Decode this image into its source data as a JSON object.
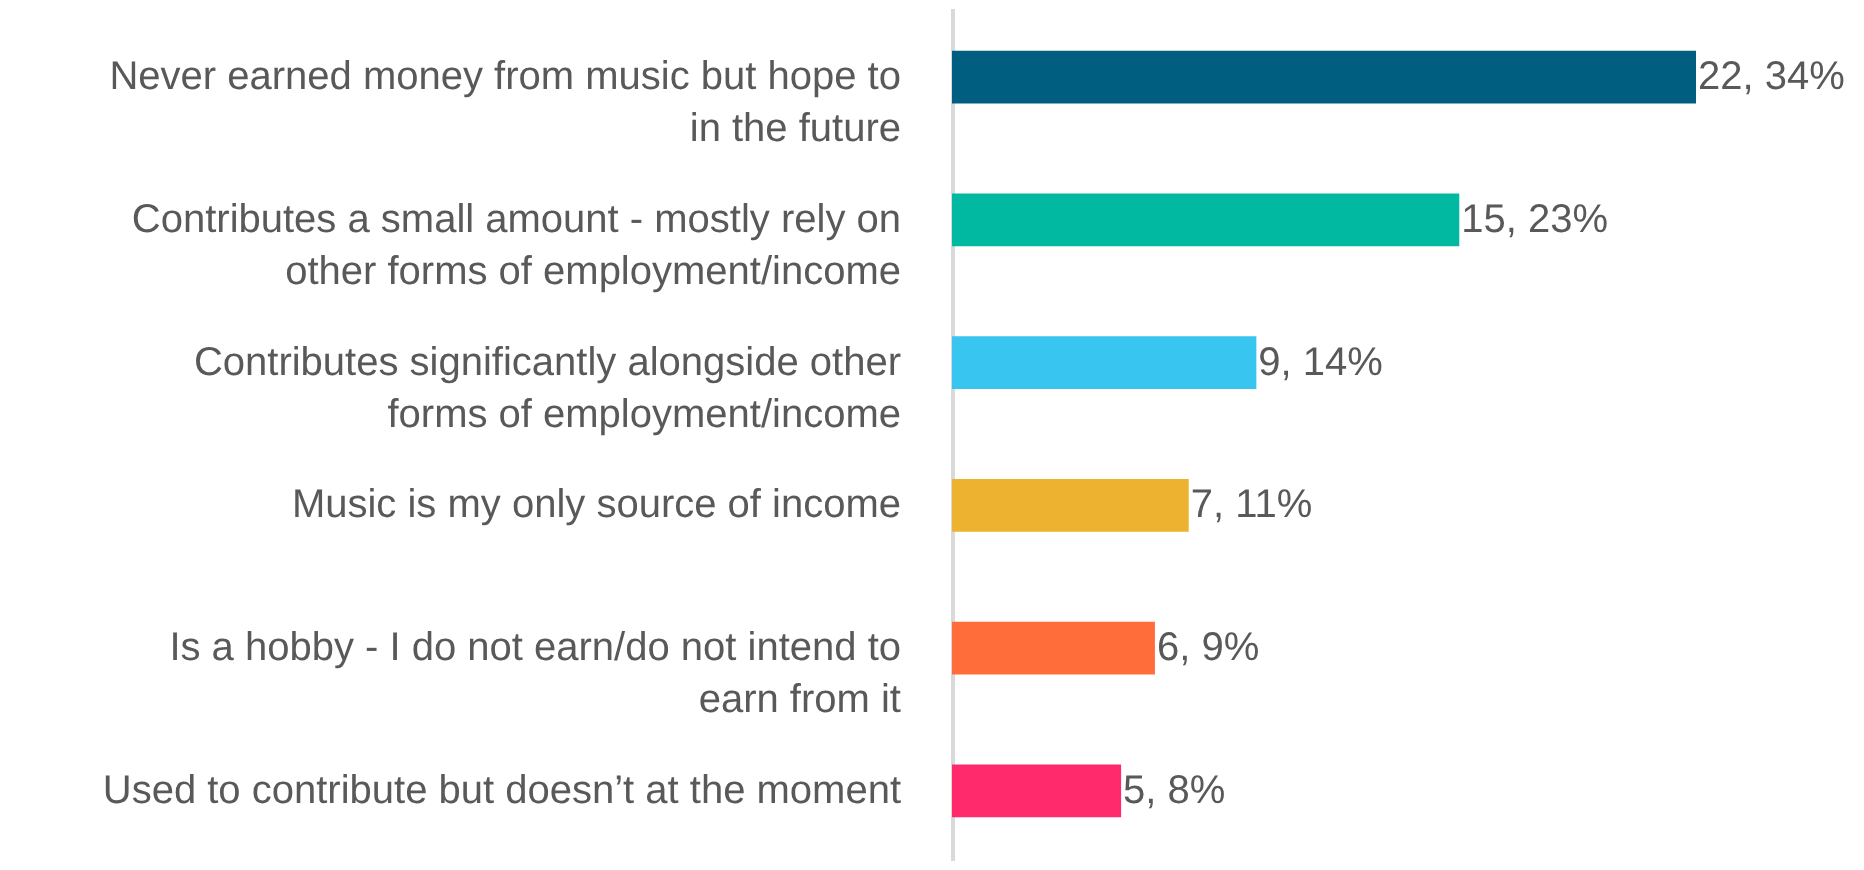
{
  "chart_data": {
    "type": "bar",
    "orientation": "horizontal",
    "categories": [
      "Never earned money from music but hope to in the future",
      "Contributes a small amount - mostly rely on other forms of employment/income",
      "Contributes significantly alongside other forms of employment/income",
      "Music is my only source of income",
      "Is a hobby - I do not earn/do not intend to earn from it",
      "Used to contribute but doesn’t at the moment"
    ],
    "values": [
      22,
      15,
      9,
      7,
      6,
      5
    ],
    "colors": [
      "#005f80",
      "#00b9a0",
      "#38c5f0",
      "#edb22f",
      "#ff6e3a",
      "#ff2a6b"
    ],
    "value_labels": [
      "22, 34%",
      "15, 23%",
      "9, 14%",
      "7, 11%",
      "6, 9%",
      "5, 8%"
    ]
  }
}
